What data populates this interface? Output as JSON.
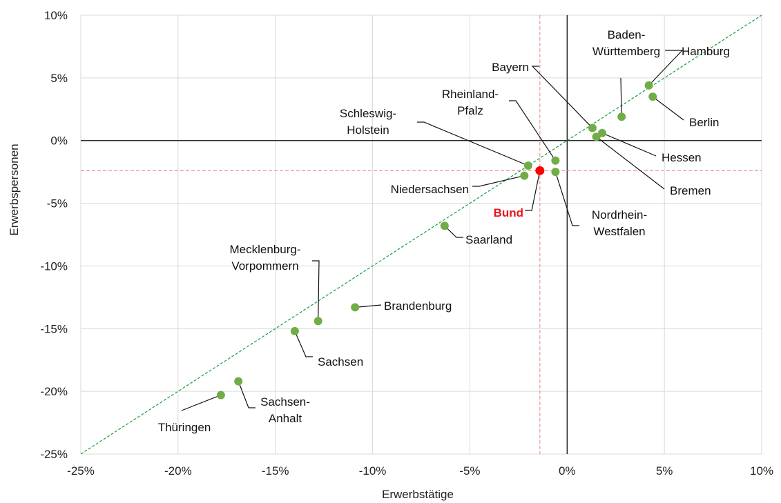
{
  "chart_data": {
    "type": "scatter",
    "xlabel": "Erwerbstätige",
    "ylabel": "Erwerbspersonen",
    "xlim": [
      -25,
      10
    ],
    "ylim": [
      -25,
      10
    ],
    "x_ticks": [
      -25,
      -20,
      -15,
      -10,
      -5,
      0,
      5,
      10
    ],
    "y_ticks": [
      -25,
      -20,
      -15,
      -10,
      -5,
      0,
      5,
      10
    ],
    "tick_labels_x": [
      "-25%",
      "-20%",
      "-15%",
      "-10%",
      "-5%",
      "0%",
      "5%",
      "10%"
    ],
    "tick_labels_y": [
      "-25%",
      "-20%",
      "-15%",
      "-10%",
      "-5%",
      "0%",
      "5%",
      "10%"
    ],
    "grid": true,
    "diagonal_reference": true,
    "colors": {
      "points": "#70ad47",
      "highlight": "#ff0000",
      "diagonal": "#1ca64a",
      "reference": "#f08080"
    },
    "points": [
      {
        "name": "Hamburg",
        "x": 4.2,
        "y": 4.4
      },
      {
        "name": "Berlin",
        "x": 4.4,
        "y": 3.5
      },
      {
        "name": "Baden-Württemberg",
        "lines": [
          "Baden-",
          "Württemberg"
        ],
        "x": 2.8,
        "y": 1.9
      },
      {
        "name": "Bayern",
        "x": 1.3,
        "y": 1.0
      },
      {
        "name": "Hessen",
        "x": 1.8,
        "y": 0.6
      },
      {
        "name": "Bremen",
        "x": 1.5,
        "y": 0.3
      },
      {
        "name": "Rheinland-Pfalz",
        "lines": [
          "Rheinland-",
          "Pfalz"
        ],
        "x": -0.6,
        "y": -1.6
      },
      {
        "name": "Schleswig-Holstein",
        "lines": [
          "Schleswig-",
          "Holstein"
        ],
        "x": -2.0,
        "y": -2.0
      },
      {
        "name": "Niedersachsen",
        "x": -2.2,
        "y": -2.8
      },
      {
        "name": "Nordrhein-Westfalen",
        "lines": [
          "Nordrhein-",
          "Westfalen"
        ],
        "x": -0.6,
        "y": -2.5
      },
      {
        "name": "Saarland",
        "x": -6.3,
        "y": -6.8
      },
      {
        "name": "Brandenburg",
        "x": -10.9,
        "y": -13.3
      },
      {
        "name": "Mecklenburg-Vorpommern",
        "lines": [
          "Mecklenburg-",
          "Vorpommern"
        ],
        "x": -12.8,
        "y": -14.4
      },
      {
        "name": "Sachsen",
        "x": -14.0,
        "y": -15.2
      },
      {
        "name": "Sachsen-Anhalt",
        "lines": [
          "Sachsen-",
          "Anhalt"
        ],
        "x": -16.9,
        "y": -19.2
      },
      {
        "name": "Thüringen",
        "x": -17.8,
        "y": -20.3
      }
    ],
    "highlight": {
      "name": "Bund",
      "x": -1.4,
      "y": -2.4
    }
  }
}
